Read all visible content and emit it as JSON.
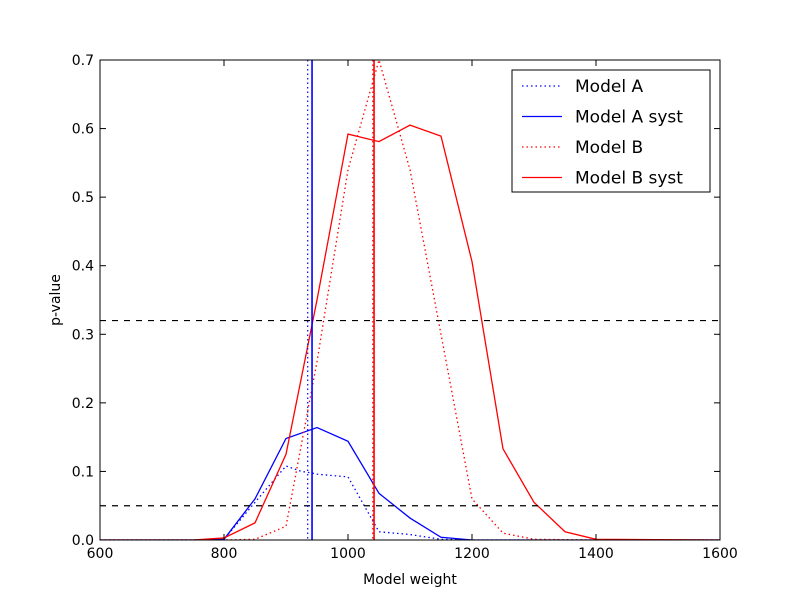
{
  "chart_data": {
    "type": "line",
    "title": "",
    "xlabel": "Model weight",
    "ylabel": "p-value",
    "xlim": [
      600,
      1600
    ],
    "ylim": [
      0.0,
      0.7
    ],
    "xticks": [
      600,
      800,
      1000,
      1200,
      1400,
      1600
    ],
    "yticks": [
      0.0,
      0.1,
      0.2,
      0.3,
      0.4,
      0.5,
      0.6,
      0.7
    ],
    "xtick_labels": [
      "600",
      "800",
      "1000",
      "1200",
      "1400",
      "1600"
    ],
    "ytick_labels": [
      "0.0",
      "0.1",
      "0.2",
      "0.3",
      "0.4",
      "0.5",
      "0.6",
      "0.7"
    ],
    "grid": false,
    "legend_position": "top-right",
    "series": [
      {
        "name": "Model A",
        "color": "#0000ff",
        "style": "dotted",
        "x": [
          600,
          750,
          800,
          850,
          900,
          925,
          940,
          950,
          1000,
          1050,
          1100,
          1150,
          1200,
          1300,
          1400,
          1600
        ],
        "y": [
          0.0,
          0.0,
          0.001,
          0.055,
          0.108,
          0.1,
          0.098,
          0.096,
          0.092,
          0.012,
          0.008,
          0.001,
          0.0,
          0.0,
          0.0,
          0.0
        ]
      },
      {
        "name": "Model A syst",
        "color": "#0000ff",
        "style": "solid",
        "x": [
          600,
          750,
          800,
          850,
          900,
          950,
          1000,
          1050,
          1100,
          1150,
          1200,
          1300,
          1400,
          1600
        ],
        "y": [
          0.0,
          0.0,
          0.001,
          0.06,
          0.148,
          0.164,
          0.144,
          0.068,
          0.032,
          0.004,
          0.0,
          0.0,
          0.0,
          0.0
        ]
      },
      {
        "name": "Model B",
        "color": "#ff0000",
        "style": "dotted",
        "x": [
          600,
          750,
          800,
          850,
          900,
          950,
          1000,
          1050,
          1100,
          1150,
          1200,
          1250,
          1300,
          1400,
          1600
        ],
        "y": [
          0.0,
          0.0,
          0.0,
          0.001,
          0.02,
          0.26,
          0.54,
          0.7,
          0.54,
          0.3,
          0.06,
          0.01,
          0.001,
          0.0,
          0.0
        ]
      },
      {
        "name": "Model B syst",
        "color": "#ff0000",
        "style": "solid",
        "x": [
          600,
          750,
          800,
          850,
          900,
          950,
          1000,
          1050,
          1100,
          1150,
          1200,
          1250,
          1300,
          1350,
          1400,
          1600
        ],
        "y": [
          0.0,
          0.0,
          0.003,
          0.025,
          0.125,
          0.35,
          0.592,
          0.581,
          0.605,
          0.589,
          0.406,
          0.133,
          0.055,
          0.012,
          0.001,
          0.0
        ]
      }
    ],
    "hlines": [
      {
        "y": 0.32,
        "color": "#000000",
        "style": "dashed"
      },
      {
        "y": 0.05,
        "color": "#000000",
        "style": "dashed"
      }
    ],
    "vlines": [
      {
        "x": 935,
        "color": "#0000ff",
        "style": "dotted"
      },
      {
        "x": 942,
        "color": "#0000ff",
        "style": "solid"
      },
      {
        "x": 1040,
        "color": "#ff0000",
        "style": "dotted"
      },
      {
        "x": 1042,
        "color": "#ff0000",
        "style": "solid"
      }
    ]
  }
}
